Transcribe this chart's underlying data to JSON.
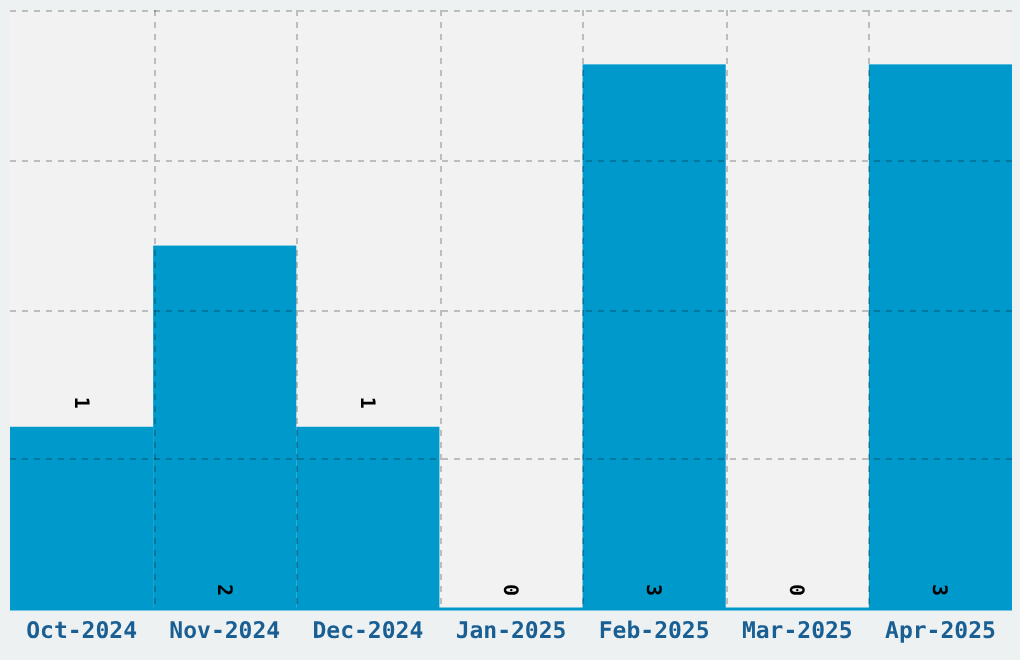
{
  "chart_data": {
    "type": "bar",
    "categories": [
      "Oct-2024",
      "Nov-2024",
      "Dec-2024",
      "Jan-2025",
      "Feb-2025",
      "Mar-2025",
      "Apr-2025"
    ],
    "values": [
      1,
      2,
      1,
      0,
      3,
      0,
      3
    ],
    "color": "#0099cc",
    "data_labels": true,
    "grid": true,
    "tick_labels": "x",
    "ylim": [
      0,
      3.3
    ],
    "yticks": [
      {
        "value": 0.825,
        "label": null
      },
      {
        "value": 1.65,
        "label": null
      },
      {
        "value": 2.475,
        "label": null
      },
      {
        "value": 3.3,
        "label": null
      }
    ]
  }
}
